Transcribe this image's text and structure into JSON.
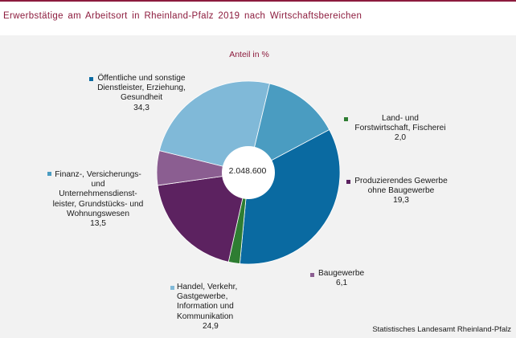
{
  "title": "Erwerbstätige  am  Arbeitsort  in  Rheinland-Pfalz  2019  nach  Wirtschaftsbereichen",
  "subtitle": "Anteil in %",
  "center_total": "2.048.600",
  "source": "Statistisches Landesamt Rheinland-Pfalz",
  "chart_data": {
    "type": "pie",
    "donut": true,
    "title": "Erwerbstätige  am  Arbeitsort  in  Rheinland-Pfalz  2019  nach  Wirtschaftsbereichen",
    "subtitle": "Anteil in %",
    "total": "2.048.600",
    "slices": [
      {
        "label_lines": [
          "Öffentliche  und  sonstige",
          "Dienstleister, Erziehung,",
          "Gesundheit"
        ],
        "value": 34.3,
        "value_text": "34,3",
        "color": "#0a6aa1"
      },
      {
        "label_lines": [
          "Land-  und",
          "Forstwirtschaft,  Fischerei"
        ],
        "value": 2.0,
        "value_text": "2,0",
        "color": "#2e7d32"
      },
      {
        "label_lines": [
          "Produzierendes  Gewerbe",
          "ohne Baugewerbe"
        ],
        "value": 19.3,
        "value_text": "19,3",
        "color": "#5c2260"
      },
      {
        "label_lines": [
          "Baugewerbe"
        ],
        "value": 6.1,
        "value_text": "6,1",
        "color": "#8b5e91"
      },
      {
        "label_lines": [
          "Handel,  Verkehr,",
          "Gastgewerbe,",
          "Information  und",
          "Kommunikation"
        ],
        "value": 24.9,
        "value_text": "24,9",
        "color": "#80b9d8"
      },
      {
        "label_lines": [
          "Finanz-,  Versicherungs-",
          "und",
          "Unternehmensdienst-",
          "leister,  Grundstücks-  und",
          "Wohnungswesen"
        ],
        "value": 13.5,
        "value_text": "13,5",
        "color": "#4a9cc1"
      }
    ]
  }
}
